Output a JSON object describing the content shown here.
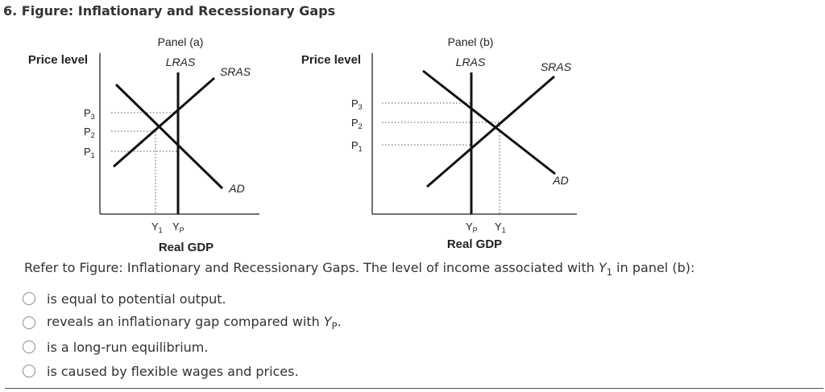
{
  "question_number": "6.",
  "figure_title": "Figure: Inflationary and Recessionary Gaps",
  "panel_a": {
    "title": "Panel (a)",
    "y_axis_label": "Price level",
    "x_axis_label": "Real GDP",
    "curves": {
      "lras": "LRAS",
      "sras": "SRAS",
      "ad": "AD"
    },
    "price_levels": [
      {
        "main": "P",
        "sub": "3"
      },
      {
        "main": "P",
        "sub": "2"
      },
      {
        "main": "P",
        "sub": "1"
      }
    ],
    "output_levels": [
      {
        "main": "Y",
        "sub": "1"
      },
      {
        "main": "Y",
        "sub": "P"
      }
    ]
  },
  "panel_b": {
    "title": "Panel (b)",
    "y_axis_label": "Price level",
    "x_axis_label": "Real GDP",
    "curves": {
      "lras": "LRAS",
      "sras": "SRAS",
      "ad": "AD"
    },
    "price_levels": [
      {
        "main": "P",
        "sub": "3"
      },
      {
        "main": "P",
        "sub": "2"
      },
      {
        "main": "P",
        "sub": "1"
      }
    ],
    "output_levels": [
      {
        "main": "Y",
        "sub": "P"
      },
      {
        "main": "Y",
        "sub": "1"
      }
    ]
  },
  "question": {
    "text_before": "Refer to Figure: Inflationary and Recessionary Gaps. The level of income associated with ",
    "var_main": "Y",
    "var_sub": "1",
    "text_after": " in panel (b):"
  },
  "options": [
    {
      "text": "is equal to potential output.",
      "var_main": "",
      "var_sub": "",
      "text_after": ""
    },
    {
      "text": "reveals an inflationary gap compared with ",
      "var_main": "Y",
      "var_sub": "P",
      "text_after": "."
    },
    {
      "text": "is a long-run equilibrium.",
      "var_main": "",
      "var_sub": "",
      "text_after": ""
    },
    {
      "text": "is caused by flexible wages and prices.",
      "var_main": "",
      "var_sub": "",
      "text_after": ""
    }
  ]
}
